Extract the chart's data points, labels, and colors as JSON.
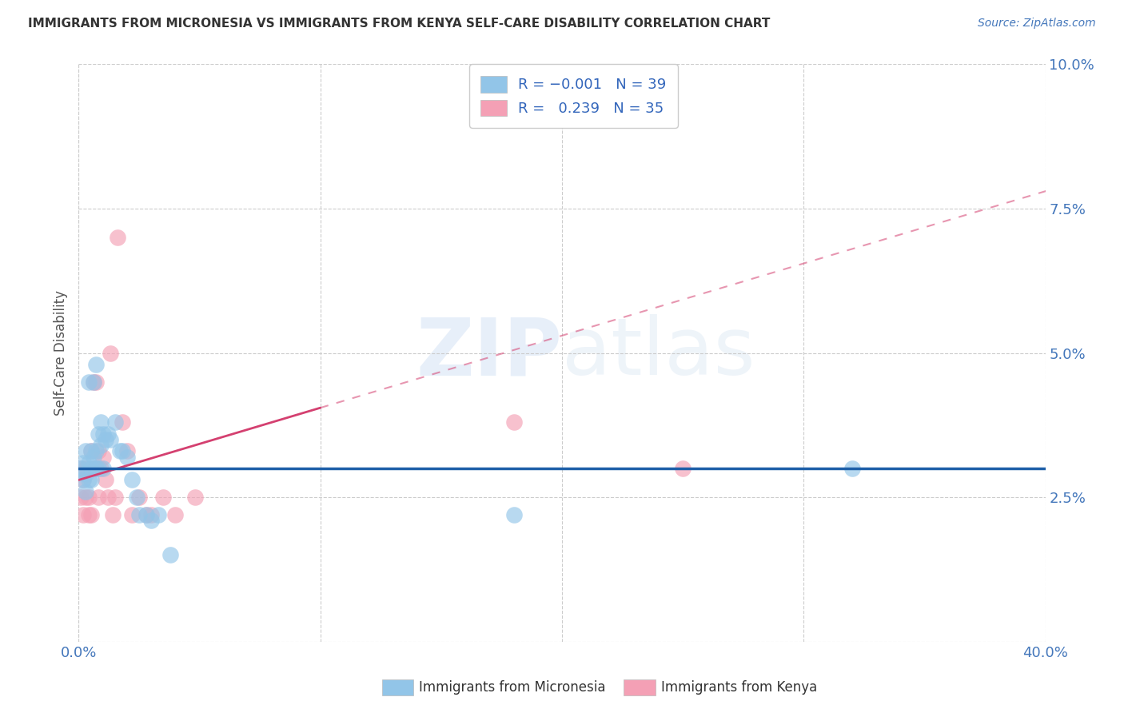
{
  "title": "IMMIGRANTS FROM MICRONESIA VS IMMIGRANTS FROM KENYA SELF-CARE DISABILITY CORRELATION CHART",
  "source": "Source: ZipAtlas.com",
  "ylabel": "Self-Care Disability",
  "micronesia_R": -0.001,
  "micronesia_N": 39,
  "kenya_R": 0.239,
  "kenya_N": 35,
  "legend_label_micronesia": "Immigrants from Micronesia",
  "legend_label_kenya": "Immigrants from Kenya",
  "color_micronesia": "#92C5E8",
  "color_kenya": "#F4A0B5",
  "trendline_micronesia": "#1E5FA8",
  "trendline_kenya": "#D44070",
  "watermark_zip": "ZIP",
  "watermark_atlas": "atlas",
  "xlim": [
    0.0,
    0.4
  ],
  "ylim": [
    0.0,
    0.1
  ],
  "mic_x": [
    0.001,
    0.002,
    0.002,
    0.003,
    0.003,
    0.003,
    0.004,
    0.004,
    0.004,
    0.005,
    0.005,
    0.005,
    0.006,
    0.006,
    0.007,
    0.007,
    0.007,
    0.008,
    0.008,
    0.009,
    0.009,
    0.01,
    0.01,
    0.011,
    0.012,
    0.013,
    0.015,
    0.017,
    0.018,
    0.02,
    0.022,
    0.024,
    0.025,
    0.028,
    0.03,
    0.033,
    0.038,
    0.32,
    0.18
  ],
  "mic_y": [
    0.03,
    0.031,
    0.028,
    0.033,
    0.029,
    0.026,
    0.031,
    0.045,
    0.028,
    0.033,
    0.03,
    0.028,
    0.032,
    0.045,
    0.03,
    0.033,
    0.048,
    0.03,
    0.036,
    0.034,
    0.038,
    0.03,
    0.036,
    0.035,
    0.036,
    0.035,
    0.038,
    0.033,
    0.033,
    0.032,
    0.028,
    0.025,
    0.022,
    0.022,
    0.021,
    0.022,
    0.015,
    0.03,
    0.022
  ],
  "ken_x": [
    0.001,
    0.001,
    0.002,
    0.002,
    0.003,
    0.003,
    0.004,
    0.004,
    0.005,
    0.005,
    0.006,
    0.006,
    0.007,
    0.007,
    0.008,
    0.008,
    0.009,
    0.01,
    0.011,
    0.012,
    0.013,
    0.014,
    0.015,
    0.016,
    0.018,
    0.02,
    0.022,
    0.025,
    0.028,
    0.03,
    0.035,
    0.04,
    0.048,
    0.25,
    0.18
  ],
  "ken_y": [
    0.03,
    0.025,
    0.028,
    0.022,
    0.03,
    0.025,
    0.022,
    0.025,
    0.022,
    0.033,
    0.03,
    0.045,
    0.03,
    0.045,
    0.025,
    0.033,
    0.03,
    0.032,
    0.028,
    0.025,
    0.05,
    0.022,
    0.025,
    0.07,
    0.038,
    0.033,
    0.022,
    0.025,
    0.022,
    0.022,
    0.025,
    0.022,
    0.025,
    0.03,
    0.038
  ],
  "mic_trend_y": 0.03,
  "ken_trend_x0": 0.0,
  "ken_trend_y0": 0.028,
  "ken_trend_x1": 0.4,
  "ken_trend_y1": 0.078
}
